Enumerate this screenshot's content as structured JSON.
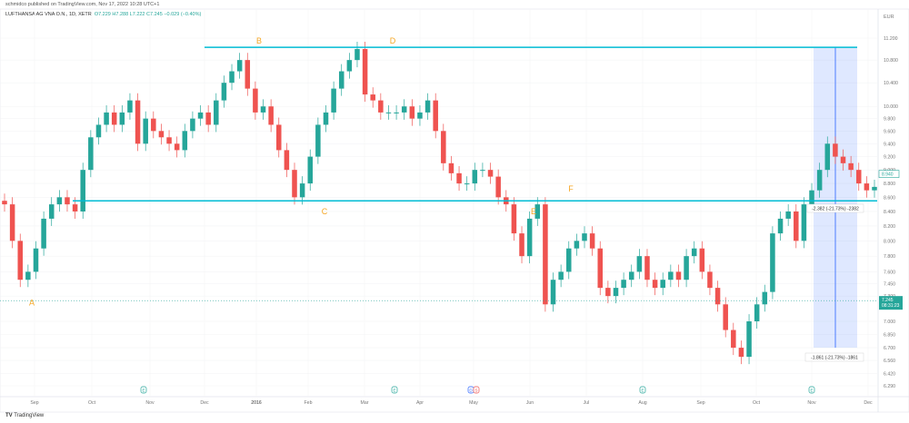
{
  "header": {
    "published": "schmidco published on TradingView.com, Nov 17, 2022 10:28 UTC+1",
    "symbol": "LUFTHANSA AG VNA O.N., 1D, XETR",
    "open": "O7.229",
    "high": "H7.288",
    "low": "L7.222",
    "close": "C7.245",
    "change": "−0.029 (−0.40%)"
  },
  "footer": {
    "brand": "TradingView"
  },
  "chart_data": {
    "type": "candlestick",
    "currency": "EUR",
    "log_scale": true,
    "ylim": [
      6.29,
      11.2
    ],
    "y_ticks": [
      "11.200",
      "10.800",
      "10.400",
      "10.000",
      "9.800",
      "9.600",
      "9.400",
      "9.200",
      "9.000",
      "8.800",
      "8.600",
      "8.400",
      "8.200",
      "8.000",
      "7.800",
      "7.600",
      "7.450",
      "7.300",
      "7.000",
      "6.850",
      "6.700",
      "6.560",
      "6.420",
      "6.290"
    ],
    "x_ticks": [
      "Sep",
      "Oct",
      "Nov",
      "Dec",
      "2016",
      "Feb",
      "Mar",
      "Apr",
      "May",
      "Jun",
      "Jul",
      "Aug",
      "Sep",
      "Oct",
      "Nov",
      "Dec"
    ],
    "closes": [
      8.5,
      8.0,
      7.5,
      7.6,
      7.9,
      8.3,
      8.5,
      8.6,
      8.5,
      8.4,
      9.0,
      9.5,
      9.7,
      9.9,
      9.7,
      9.9,
      10.1,
      9.4,
      9.8,
      9.6,
      9.5,
      9.4,
      9.3,
      9.6,
      9.8,
      9.9,
      9.7,
      10.1,
      10.4,
      10.6,
      10.8,
      10.3,
      9.9,
      10.0,
      9.7,
      9.3,
      9.0,
      8.6,
      8.8,
      9.2,
      9.7,
      9.9,
      10.3,
      10.6,
      10.8,
      11.0,
      10.2,
      10.1,
      9.9,
      9.9,
      9.9,
      10.0,
      9.8,
      9.9,
      10.1,
      9.6,
      9.1,
      8.95,
      8.8,
      8.8,
      9.0,
      9.0,
      8.9,
      8.6,
      8.5,
      8.1,
      7.8,
      8.3,
      8.5,
      7.2,
      7.5,
      7.6,
      7.9,
      8.0,
      8.1,
      7.9,
      7.4,
      7.3,
      7.4,
      7.5,
      7.6,
      7.8,
      7.5,
      7.4,
      7.5,
      7.6,
      7.5,
      7.8,
      7.9,
      7.6,
      7.4,
      7.2,
      6.9,
      6.7,
      6.6,
      7.0,
      7.2,
      7.35,
      8.1,
      8.3,
      8.4,
      8.0,
      8.5,
      8.7,
      9.0,
      9.4,
      9.2,
      9.1,
      9.0,
      8.8,
      8.7,
      8.75
    ],
    "last_price": "7.245",
    "countdown": "08:31:23",
    "other_price": "8.940",
    "resistance": 11.03,
    "support": 8.55,
    "points": [
      {
        "label": "A",
        "price": 7.22
      },
      {
        "label": "B",
        "price": 11.15
      },
      {
        "label": "C",
        "price": 8.4
      },
      {
        "label": "D",
        "price": 11.15
      },
      {
        "label": "E",
        "price": 8.4
      },
      {
        "label": "F",
        "price": 8.72
      }
    ],
    "measure": {
      "upper_label": "-2.382 (-21.73%) -2382",
      "lower_label": "-1.861 (-21.73%) -1861"
    },
    "events": [
      "E",
      "E",
      "D",
      "S",
      "E",
      "E"
    ],
    "colors": {
      "up": "#26a69a",
      "down": "#ef5350",
      "line": "#00bcd4",
      "label": "#f5a623",
      "measure": "#2962ff"
    }
  }
}
